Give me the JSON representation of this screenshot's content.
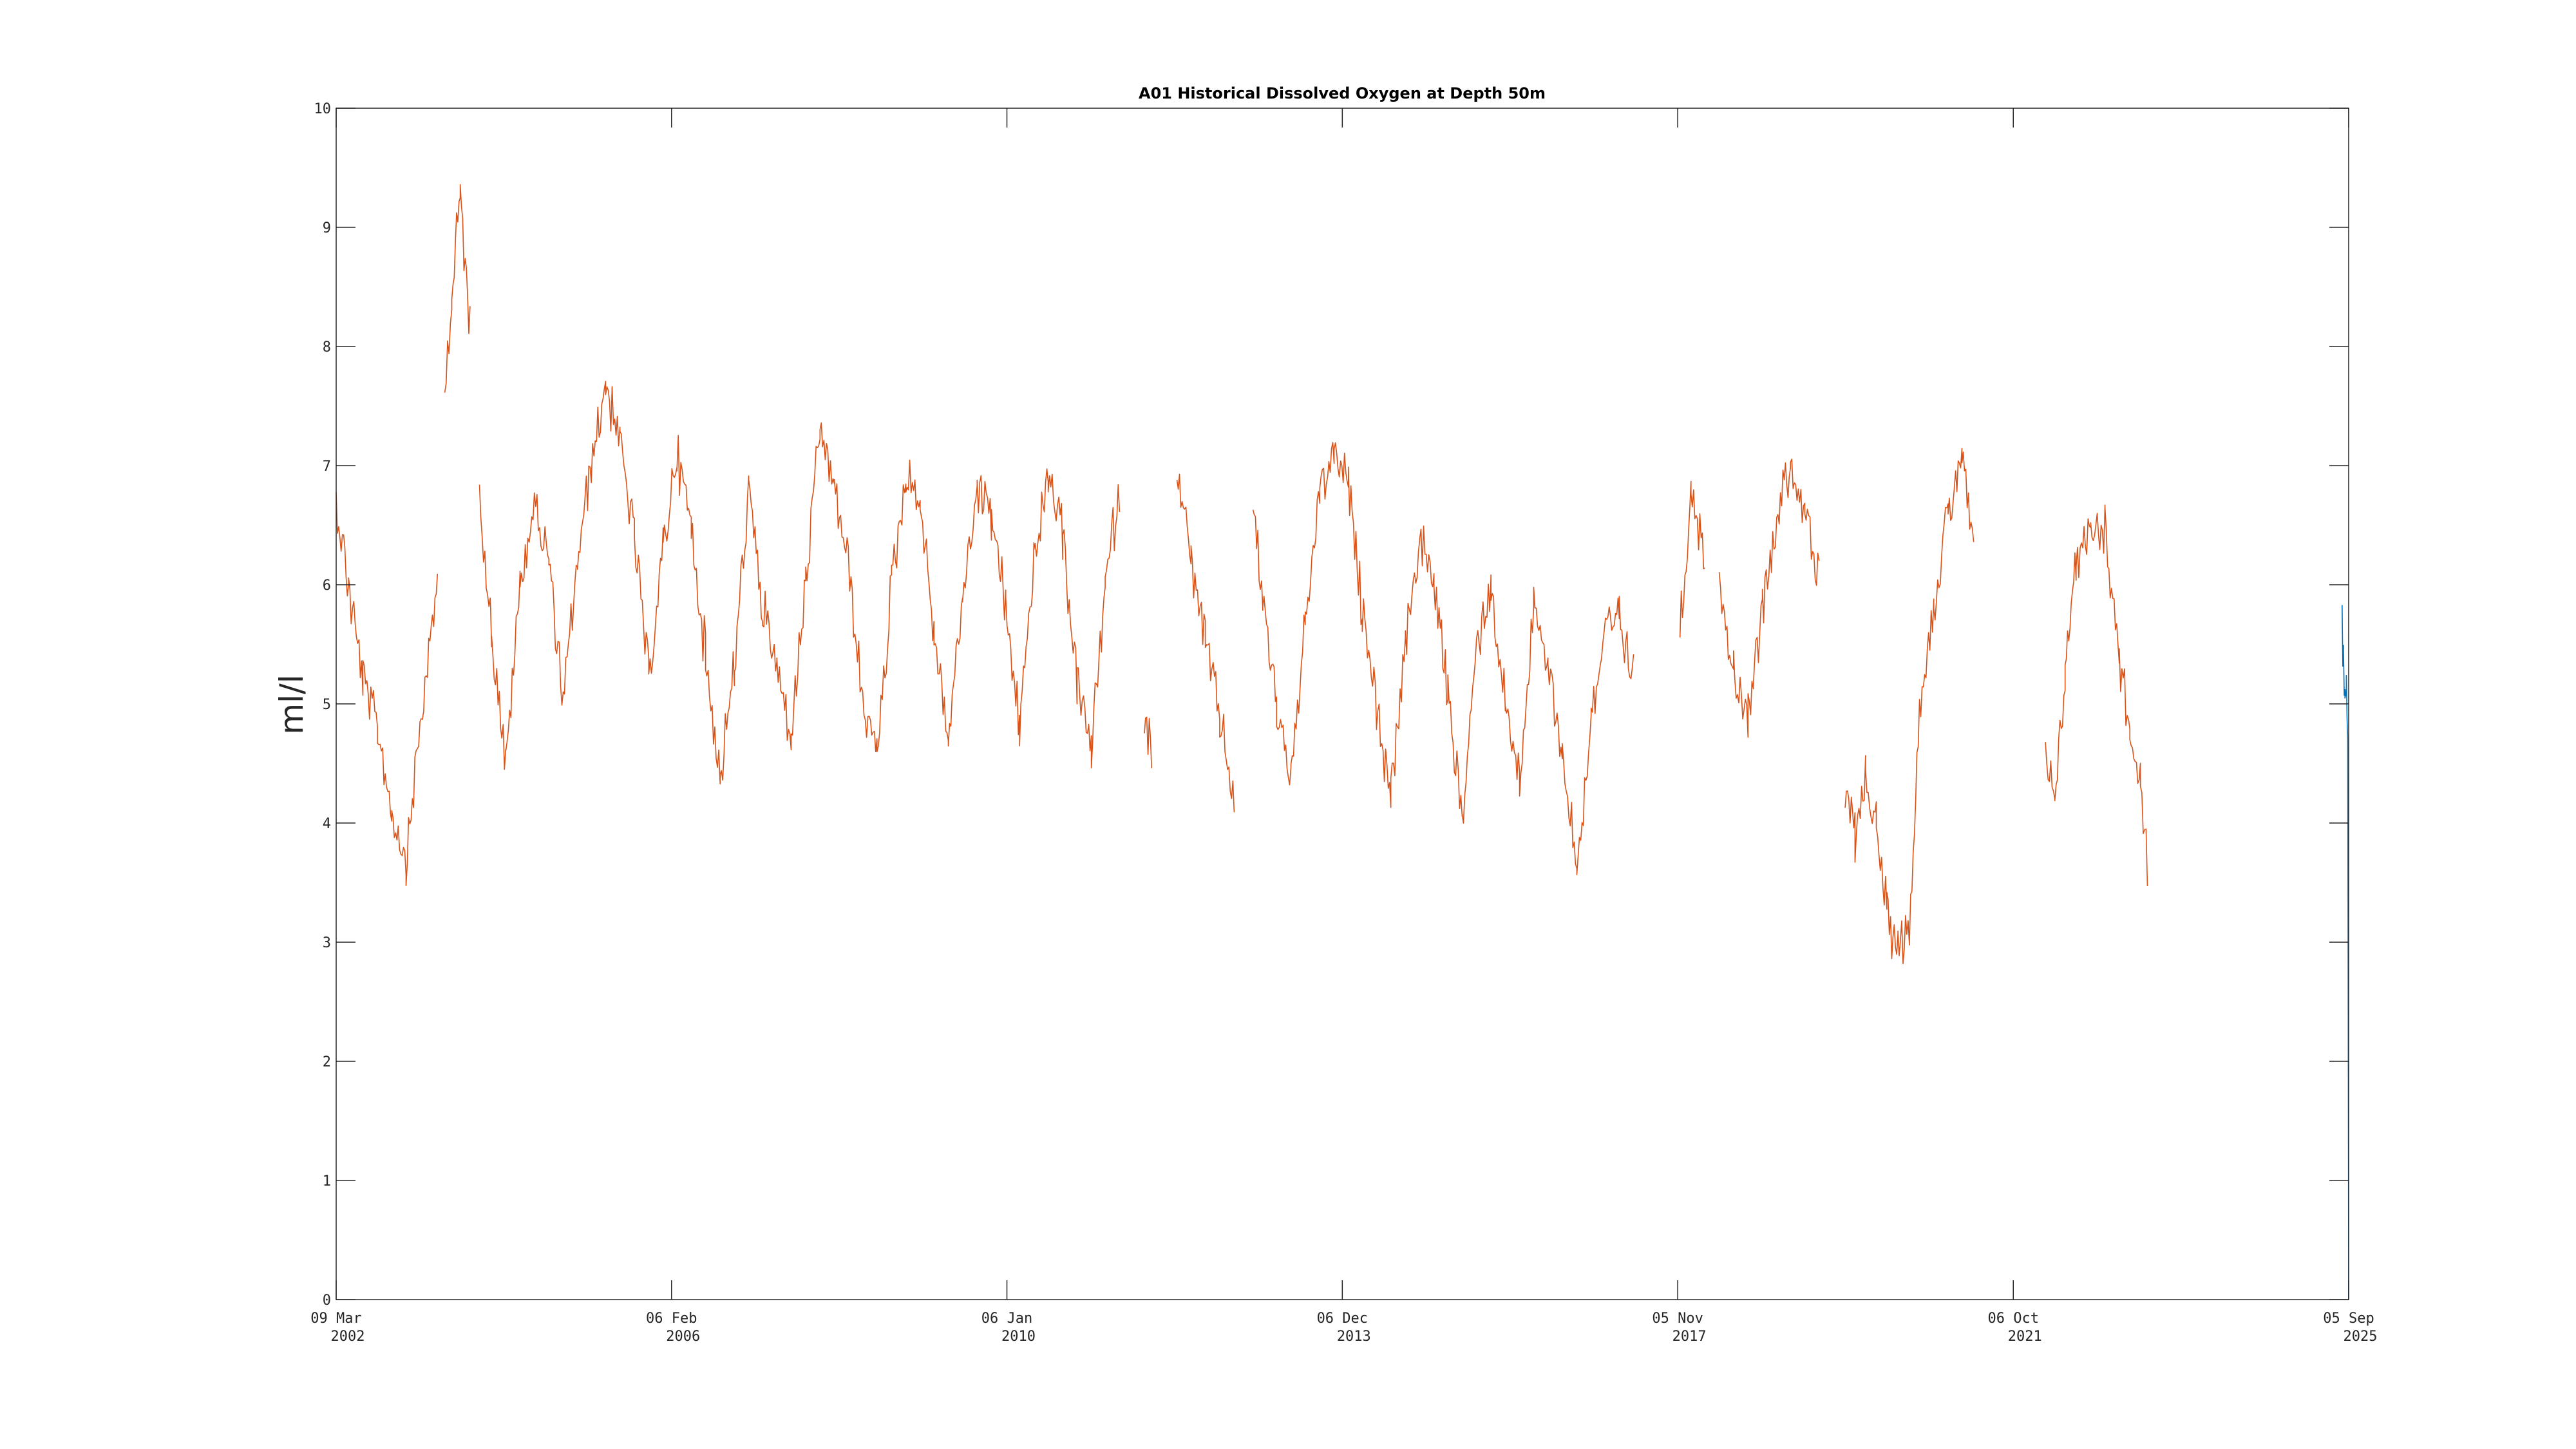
{
  "chart_data": {
    "type": "line",
    "title": "A01 Historical Dissolved Oxygen at Depth 50m",
    "xlabel": "",
    "ylabel": "ml/l",
    "xlim": [
      "2002-03-09",
      "2025-09-05"
    ],
    "ylim": [
      0,
      10
    ],
    "yticks": [
      "0",
      "1",
      "2",
      "3",
      "4",
      "5",
      "6",
      "7",
      "8",
      "9",
      "10"
    ],
    "xticks": [
      {
        "date": "2002-03-09",
        "line1": "09 Mar",
        "line2": "2002"
      },
      {
        "date": "2006-02-06",
        "line1": "06 Feb",
        "line2": "2006"
      },
      {
        "date": "2010-01-06",
        "line1": "06 Jan",
        "line2": "2010"
      },
      {
        "date": "2013-12-06",
        "line1": "06 Dec",
        "line2": "2013"
      },
      {
        "date": "2017-11-05",
        "line1": "05 Nov",
        "line2": "2017"
      },
      {
        "date": "2021-10-06",
        "line1": "06 Oct",
        "line2": "2021"
      },
      {
        "date": "2025-09-05",
        "line1": "05 Sep",
        "line2": "2025"
      }
    ],
    "grid": false,
    "series": [
      {
        "color": "#D95319",
        "segments": [
          {
            "x": [
              "2002-03-09",
              "2002-05-01",
              "2002-07-01",
              "2002-09-01",
              "2002-11-01",
              "2003-01-01",
              "2003-03-01",
              "2003-05-15"
            ],
            "y": [
              6.7,
              6.0,
              5.2,
              4.8,
              4.1,
              3.7,
              4.8,
              6.0
            ]
          },
          {
            "x": [
              "2003-06-15",
              "2003-07-15",
              "2003-08-20",
              "2003-10-01"
            ],
            "y": [
              7.7,
              8.4,
              9.3,
              8.1
            ]
          },
          {
            "x": [
              "2003-11-10",
              "2004-01-01",
              "2004-03-01",
              "2004-05-01",
              "2004-07-01",
              "2004-09-01",
              "2004-11-01",
              "2005-01-01",
              "2005-03-01",
              "2005-05-01",
              "2005-07-01",
              "2005-09-01",
              "2005-11-01",
              "2006-01-01",
              "2006-03-01",
              "2006-05-01",
              "2006-07-01",
              "2006-09-01",
              "2006-11-01",
              "2007-01-01",
              "2007-03-01",
              "2007-05-01",
              "2007-07-01",
              "2007-09-01",
              "2007-11-01",
              "2008-01-01",
              "2008-03-01",
              "2008-05-01",
              "2008-07-01",
              "2008-09-01",
              "2008-11-01",
              "2009-01-01",
              "2009-03-01",
              "2009-05-01",
              "2009-07-01",
              "2009-09-01",
              "2009-11-01",
              "2010-01-01",
              "2010-03-01",
              "2010-05-01",
              "2010-07-01",
              "2010-09-01",
              "2010-11-01",
              "2011-01-01",
              "2011-03-01",
              "2011-05-01"
            ],
            "y": [
              6.8,
              5.6,
              4.5,
              6.0,
              6.7,
              6.2,
              5.0,
              6.2,
              7.0,
              7.7,
              7.2,
              6.4,
              5.2,
              6.3,
              7.1,
              6.5,
              5.4,
              4.4,
              5.3,
              6.8,
              5.8,
              5.3,
              4.7,
              6.0,
              7.3,
              6.8,
              6.2,
              5.0,
              4.6,
              6.0,
              6.9,
              6.7,
              5.6,
              4.7,
              5.9,
              6.8,
              6.6,
              5.8,
              4.8,
              6.2,
              6.9,
              6.4,
              5.2,
              4.6,
              6.0,
              6.8
            ]
          },
          {
            "x": [
              "2011-08-15",
              "2011-09-15"
            ],
            "y": [
              4.9,
              4.6
            ]
          },
          {
            "x": [
              "2012-01-01",
              "2012-03-01",
              "2012-05-01",
              "2012-07-01",
              "2012-09-01"
            ],
            "y": [
              7.0,
              6.2,
              5.5,
              4.9,
              4.2
            ]
          },
          {
            "x": [
              "2012-11-20",
              "2013-01-01",
              "2013-03-01",
              "2013-05-01",
              "2013-07-01",
              "2013-09-01",
              "2013-11-01",
              "2014-01-01",
              "2014-03-01",
              "2014-05-01",
              "2014-07-01",
              "2014-09-01",
              "2014-11-01",
              "2015-01-01",
              "2015-03-01",
              "2015-05-01",
              "2015-07-01",
              "2015-09-01",
              "2015-11-01",
              "2016-01-01",
              "2016-03-01",
              "2016-05-01",
              "2016-07-01",
              "2016-09-01",
              "2016-11-01",
              "2017-01-01",
              "2017-03-01",
              "2017-05-01"
            ],
            "y": [
              6.6,
              5.9,
              5.0,
              4.4,
              5.6,
              6.8,
              7.1,
              6.8,
              5.8,
              5.0,
              4.2,
              5.5,
              6.4,
              6.0,
              5.1,
              4.0,
              5.5,
              6.0,
              5.0,
              4.4,
              5.8,
              5.3,
              4.6,
              3.6,
              4.9,
              5.6,
              5.7,
              5.2
            ]
          },
          {
            "x": [
              "2017-11-15",
              "2018-01-01",
              "2018-03-01"
            ],
            "y": [
              5.6,
              6.8,
              6.2
            ]
          },
          {
            "x": [
              "2018-05-01",
              "2018-07-01",
              "2018-09-01",
              "2018-11-01",
              "2019-01-01",
              "2019-03-01",
              "2019-05-01",
              "2019-07-01"
            ],
            "y": [
              6.1,
              5.3,
              4.9,
              5.8,
              6.6,
              7.0,
              6.6,
              6.0
            ]
          },
          {
            "x": [
              "2019-10-20",
              "2019-12-01",
              "2020-01-15",
              "2020-03-01",
              "2020-04-15",
              "2020-06-01",
              "2020-07-20",
              "2020-09-01",
              "2020-11-01",
              "2021-01-01",
              "2021-03-01",
              "2021-04-20"
            ],
            "y": [
              4.2,
              3.9,
              4.4,
              4.0,
              3.2,
              3.0,
              3.1,
              5.0,
              5.8,
              6.6,
              7.1,
              6.2
            ]
          },
          {
            "x": [
              "2022-02-20",
              "2022-04-01",
              "2022-05-15",
              "2022-07-01",
              "2022-09-01",
              "2022-11-01",
              "2023-01-01",
              "2023-02-15",
              "2023-04-01",
              "2023-05-01"
            ],
            "y": [
              4.6,
              4.1,
              5.3,
              6.2,
              6.5,
              6.5,
              5.4,
              4.8,
              4.3,
              3.6
            ]
          }
        ]
      },
      {
        "color": "#0072BD",
        "segments": [
          {
            "x": [
              "2025-08-08",
              "2025-08-14",
              "2025-08-20",
              "2025-08-26",
              "2025-09-01",
              "2025-09-05"
            ],
            "y": [
              5.6,
              5.3,
              5.0,
              5.2,
              4.7,
              0.0
            ]
          }
        ]
      }
    ]
  }
}
